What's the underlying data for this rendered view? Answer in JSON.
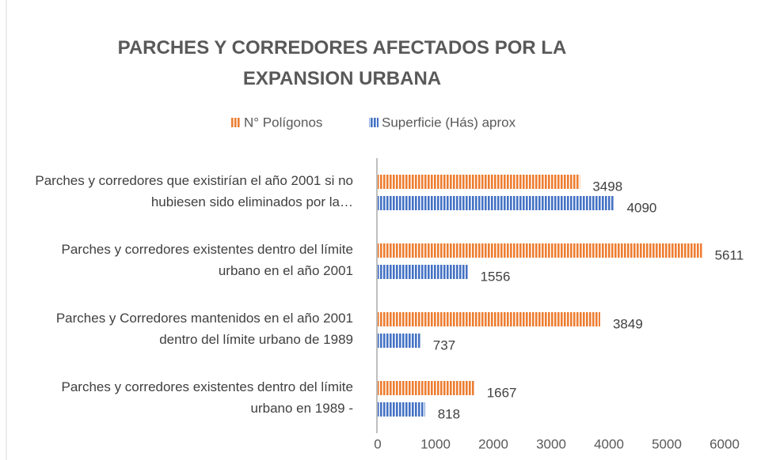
{
  "chart_data": {
    "type": "bar",
    "orientation": "horizontal",
    "title": "PARCHES Y CORREDORES AFECTADOS POR LA EXPANSION URBANA",
    "categories": [
      "Parches y corredores que existirían el año 2001 si no hubiesen sido eliminados por la…",
      "Parches y corredores existentes dentro del límite urbano en el año 2001",
      "Parches y Corredores mantenidos en el año 2001 dentro del límite urbano de 1989",
      "Parches y corredores existentes dentro del límite urbano en 1989 -"
    ],
    "series": [
      {
        "name": "N° Polígonos",
        "color": "#ed7d31",
        "values": [
          3498,
          5611,
          3849,
          1667
        ]
      },
      {
        "name": "Superficie (Hás) aprox",
        "color": "#4472c4",
        "values": [
          4090,
          1556,
          737,
          818
        ]
      }
    ],
    "xlim": [
      0,
      6000
    ],
    "xticks": [
      0,
      1000,
      2000,
      3000,
      4000,
      5000,
      6000
    ],
    "legend": "top",
    "grid": false
  }
}
